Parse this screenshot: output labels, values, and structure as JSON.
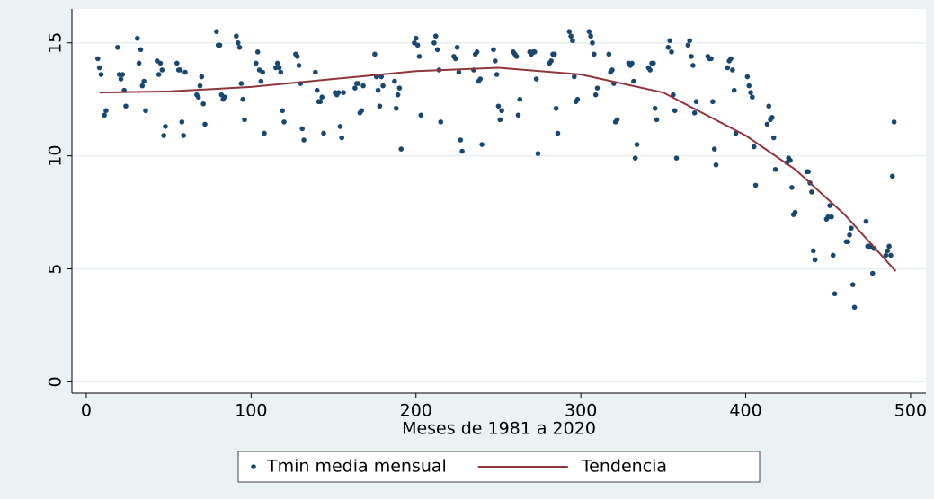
{
  "chart_data": {
    "type": "scatter",
    "xlabel": "Meses de 1981 a 2020",
    "xlim": [
      -8.7,
      509.3
    ],
    "xticks": [
      0,
      100,
      200,
      300,
      400,
      500
    ],
    "ylim": [
      -0.5,
      16.5
    ],
    "yticks": [
      0,
      5,
      10,
      15
    ],
    "grid": true,
    "legend": "bottom",
    "series": [
      {
        "name": "Tmin media mensual",
        "color": "#1a476f",
        "type": "scatter",
        "x": [
          7,
          8,
          9,
          11,
          12,
          19,
          20,
          21,
          22,
          23,
          24,
          31,
          32,
          33,
          34,
          35,
          36,
          43,
          44,
          45,
          46,
          47,
          48,
          55,
          56,
          57,
          58,
          59,
          60,
          67,
          68,
          69,
          70,
          71,
          72,
          79,
          80,
          81,
          82,
          83,
          84,
          91,
          92,
          93,
          94,
          95,
          96,
          103,
          104,
          105,
          106,
          107,
          108,
          115,
          116,
          117,
          118,
          119,
          120,
          127,
          128,
          129,
          130,
          131,
          132,
          139,
          140,
          141,
          142,
          143,
          144,
          151,
          152,
          153,
          154,
          155,
          156,
          163,
          164,
          165,
          166,
          167,
          168,
          175,
          176,
          177,
          178,
          179,
          180,
          187,
          188,
          189,
          190,
          191,
          199,
          200,
          201,
          202,
          203,
          211,
          212,
          213,
          214,
          215,
          223,
          224,
          225,
          226,
          227,
          228,
          235,
          236,
          237,
          238,
          239,
          240,
          247,
          248,
          249,
          250,
          251,
          252,
          259,
          260,
          261,
          262,
          263,
          269,
          270,
          271,
          272,
          273,
          274,
          281,
          282,
          283,
          284,
          285,
          286,
          293,
          294,
          295,
          296,
          297,
          298,
          305,
          306,
          307,
          308,
          309,
          310,
          317,
          318,
          319,
          320,
          321,
          322,
          329,
          330,
          331,
          332,
          333,
          334,
          341,
          342,
          343,
          344,
          345,
          346,
          353,
          354,
          355,
          356,
          357,
          358,
          365,
          366,
          367,
          368,
          369,
          370,
          377,
          378,
          379,
          380,
          381,
          382,
          389,
          390,
          391,
          392,
          393,
          394,
          401,
          402,
          403,
          404,
          405,
          406,
          413,
          414,
          415,
          416,
          417,
          418,
          425,
          426,
          427,
          428,
          429,
          430,
          437,
          438,
          439,
          440,
          441,
          442,
          449,
          450,
          451,
          452,
          453,
          454,
          461,
          462,
          463,
          464,
          465,
          466,
          473,
          474,
          475,
          476,
          477,
          478,
          485,
          486,
          487,
          488,
          489,
          490
        ],
        "values": [
          14.3,
          13.9,
          13.6,
          11.8,
          12.0,
          14.8,
          13.6,
          13.4,
          13.6,
          12.9,
          12.2,
          15.2,
          14.1,
          14.7,
          13.1,
          13.3,
          12.0,
          14.2,
          13.6,
          14.1,
          13.8,
          10.9,
          11.3,
          14.1,
          13.8,
          13.8,
          11.5,
          10.9,
          13.7,
          12.7,
          12.6,
          13.1,
          13.5,
          12.3,
          11.4,
          15.5,
          14.9,
          14.9,
          12.7,
          12.5,
          12.6,
          15.3,
          15.0,
          14.8,
          13.2,
          12.5,
          11.6,
          14.1,
          14.6,
          13.8,
          13.3,
          13.7,
          11.0,
          13.9,
          14.1,
          13.9,
          13.7,
          12.0,
          11.5,
          14.5,
          14.4,
          14.0,
          13.2,
          11.2,
          10.7,
          13.7,
          12.9,
          12.4,
          12.4,
          12.6,
          11.0,
          12.8,
          12.7,
          12.8,
          11.3,
          10.8,
          12.8,
          13.0,
          13.2,
          13.2,
          11.9,
          12.0,
          13.1,
          14.5,
          13.5,
          12.9,
          12.2,
          13.5,
          13.1,
          13.3,
          12.1,
          12.7,
          13.0,
          10.3,
          15.0,
          15.2,
          14.9,
          14.4,
          11.8,
          15.0,
          15.3,
          14.7,
          13.8,
          11.5,
          14.4,
          14.3,
          14.8,
          13.7,
          10.7,
          10.2,
          13.8,
          14.5,
          14.6,
          13.3,
          13.4,
          10.5,
          14.7,
          14.2,
          13.6,
          12.2,
          11.6,
          12.0,
          14.6,
          14.5,
          14.4,
          11.8,
          12.5,
          14.6,
          14.5,
          14.6,
          14.6,
          13.4,
          10.1,
          14.1,
          14.2,
          14.5,
          14.5,
          12.1,
          11.0,
          15.5,
          15.3,
          15.1,
          13.5,
          12.4,
          12.5,
          15.5,
          15.3,
          15.0,
          14.5,
          12.7,
          13.0,
          14.5,
          13.7,
          13.8,
          13.2,
          11.5,
          11.6,
          14.1,
          14.0,
          14.1,
          13.3,
          9.9,
          10.5,
          13.9,
          13.8,
          14.1,
          14.1,
          12.1,
          11.6,
          14.8,
          15.1,
          14.6,
          12.7,
          12.0,
          9.9,
          14.9,
          15.1,
          14.4,
          14.0,
          11.9,
          12.4,
          14.4,
          14.3,
          14.3,
          12.4,
          10.3,
          9.6,
          13.9,
          14.2,
          14.3,
          13.8,
          12.9,
          11.0,
          13.5,
          13.1,
          12.8,
          12.6,
          10.4,
          8.7,
          11.4,
          12.2,
          11.6,
          11.7,
          10.8,
          9.4,
          9.7,
          9.9,
          9.8,
          8.6,
          7.4,
          7.5,
          9.3,
          9.3,
          8.8,
          8.4,
          5.8,
          5.4,
          7.2,
          7.3,
          7.8,
          7.3,
          5.6,
          3.9,
          6.2,
          6.2,
          6.5,
          6.8,
          4.3,
          3.3,
          7.1,
          6.0,
          6.0,
          6.0,
          4.8,
          5.9,
          5.6,
          5.8,
          6.0,
          5.6,
          9.1,
          11.5
        ]
      },
      {
        "name": "Tendencia",
        "color": "#90353b",
        "type": "line",
        "x": [
          8,
          50,
          100,
          150,
          200,
          250,
          300,
          350,
          400,
          430,
          460,
          491
        ],
        "values": [
          12.8,
          12.85,
          13.05,
          13.4,
          13.75,
          13.9,
          13.6,
          12.8,
          10.9,
          9.4,
          7.4,
          4.9
        ]
      }
    ]
  }
}
